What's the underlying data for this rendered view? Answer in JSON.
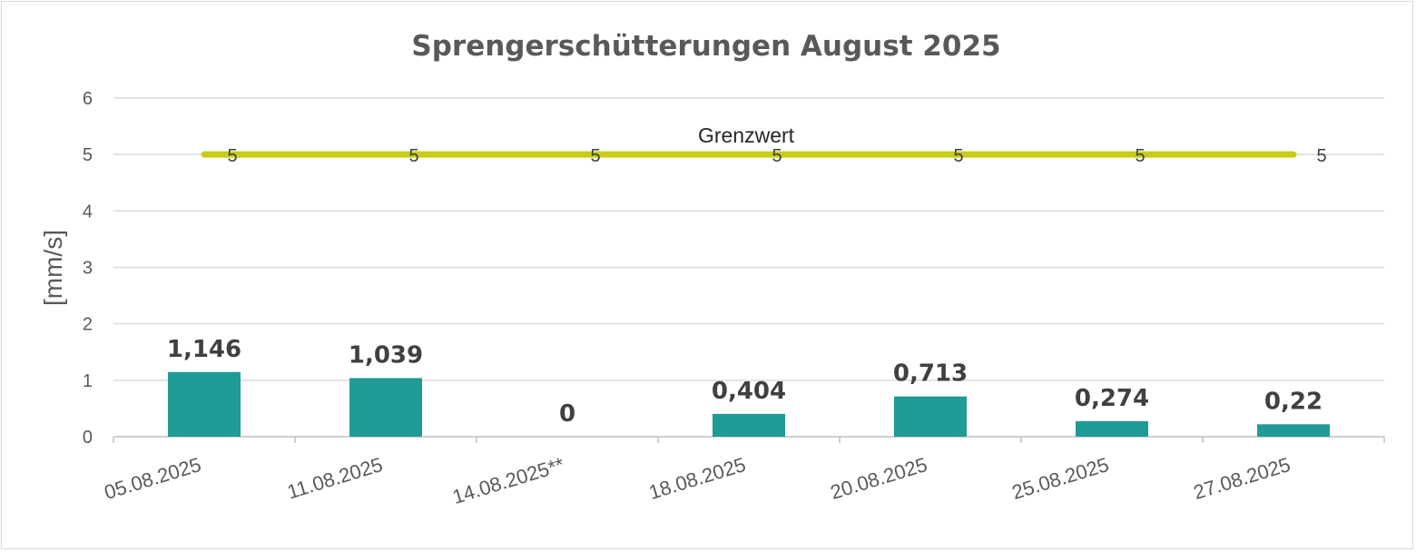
{
  "chart_data": {
    "type": "bar",
    "title": "Sprengerschütterungen August 2025",
    "ylabel": "[mm/s]",
    "xlabel": "",
    "ylim": [
      0,
      6
    ],
    "yticks": [
      "0",
      "1",
      "2",
      "3",
      "4",
      "5",
      "6"
    ],
    "grid": true,
    "categories": [
      "05.08.2025",
      "11.08.2025",
      "14.08.2025**",
      "18.08.2025",
      "20.08.2025",
      "25.08.2025",
      "27.08.2025"
    ],
    "series": [
      {
        "type": "bar",
        "values": [
          1.146,
          1.039,
          0,
          0.404,
          0.713,
          0.274,
          0.22
        ],
        "labels": [
          "1,146",
          "1,039",
          "0",
          "0,404",
          "0,713",
          "0,274",
          "0,22"
        ],
        "color": "#1f9a96"
      },
      {
        "type": "line",
        "name": "Grenzwert",
        "values": [
          5,
          5,
          5,
          5,
          5,
          5,
          5
        ],
        "labels": [
          "5",
          "5",
          "5",
          "5",
          "5",
          "5",
          "5"
        ],
        "color": "#c8cc14"
      }
    ]
  }
}
